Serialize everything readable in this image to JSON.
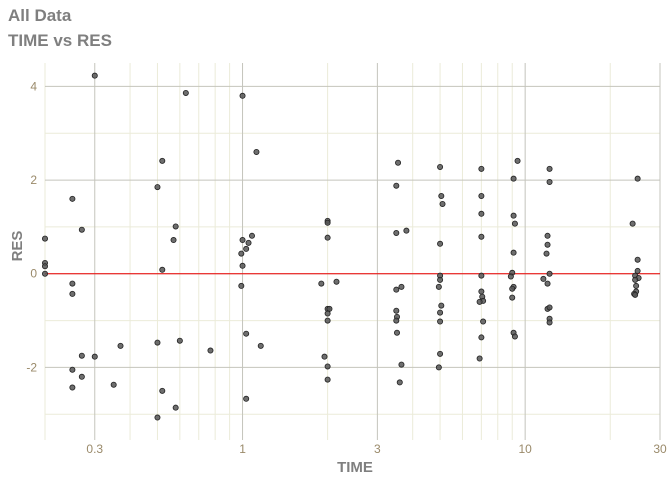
{
  "title": "All Data",
  "subtitle": "TIME vs RES",
  "chart_data": {
    "type": "scatter",
    "title": "All Data",
    "subtitle": "TIME vs RES",
    "xlabel": "TIME",
    "ylabel": "RES",
    "xscale": "log",
    "xlim": [
      0.2,
      30
    ],
    "ylim": [
      -3.55,
      4.5
    ],
    "xticks": [
      0.3,
      1,
      3,
      10,
      30
    ],
    "xtick_labels": [
      "0.3",
      "1",
      "3",
      "10",
      "30"
    ],
    "yticks": [
      -2,
      0,
      2,
      4
    ],
    "ytick_labels": [
      "-2",
      "0",
      "2",
      "4"
    ],
    "grid": true,
    "reference_line": {
      "y": 0,
      "color": "#ee0000"
    },
    "point_color": "#555555",
    "points": [
      [
        0.3,
        4.23
      ],
      [
        0.63,
        3.86
      ],
      [
        1.0,
        3.8
      ],
      [
        1.12,
        2.6
      ],
      [
        0.52,
        2.41
      ],
      [
        0.5,
        1.85
      ],
      [
        0.25,
        1.6
      ],
      [
        0.27,
        0.94
      ],
      [
        0.58,
        1.01
      ],
      [
        0.57,
        0.72
      ],
      [
        0.2,
        0.75
      ],
      [
        1.0,
        0.72
      ],
      [
        1.08,
        0.81
      ],
      [
        1.05,
        0.66
      ],
      [
        1.03,
        0.53
      ],
      [
        0.99,
        0.43
      ],
      [
        0.2,
        0.23
      ],
      [
        0.2,
        0.16
      ],
      [
        0.2,
        0.0
      ],
      [
        0.52,
        0.085
      ],
      [
        1.0,
        0.17
      ],
      [
        0.99,
        -0.26
      ],
      [
        0.25,
        -0.21
      ],
      [
        0.25,
        -0.43
      ],
      [
        1.03,
        -1.28
      ],
      [
        0.5,
        -1.47
      ],
      [
        0.6,
        -1.43
      ],
      [
        0.37,
        -1.54
      ],
      [
        0.77,
        -1.64
      ],
      [
        1.16,
        -1.54
      ],
      [
        0.27,
        -1.75
      ],
      [
        0.3,
        -1.77
      ],
      [
        0.25,
        -2.05
      ],
      [
        0.27,
        -2.2
      ],
      [
        0.35,
        -2.37
      ],
      [
        0.25,
        -2.43
      ],
      [
        0.52,
        -2.5
      ],
      [
        1.03,
        -2.67
      ],
      [
        0.58,
        -2.86
      ],
      [
        0.5,
        -3.07
      ],
      [
        2.0,
        1.13
      ],
      [
        2.0,
        1.09
      ],
      [
        2.0,
        0.77
      ],
      [
        3.55,
        2.37
      ],
      [
        3.5,
        1.88
      ],
      [
        3.5,
        0.87
      ],
      [
        3.8,
        0.92
      ],
      [
        5.0,
        2.28
      ],
      [
        5.05,
        1.66
      ],
      [
        5.1,
        1.49
      ],
      [
        5.0,
        0.64
      ],
      [
        1.9,
        -0.21
      ],
      [
        2.15,
        -0.17
      ],
      [
        2.0,
        -0.75
      ],
      [
        2.03,
        -0.75
      ],
      [
        2.0,
        -0.85
      ],
      [
        2.0,
        -1.0
      ],
      [
        1.95,
        -1.77
      ],
      [
        2.0,
        -1.98
      ],
      [
        2.0,
        -2.26
      ],
      [
        3.5,
        -0.34
      ],
      [
        3.65,
        -0.28
      ],
      [
        3.5,
        -0.79
      ],
      [
        3.52,
        -0.92
      ],
      [
        3.5,
        -1.0
      ],
      [
        3.52,
        -1.26
      ],
      [
        3.65,
        -1.94
      ],
      [
        3.6,
        -2.32
      ],
      [
        5.0,
        -0.04
      ],
      [
        5.0,
        -0.13
      ],
      [
        4.95,
        -0.28
      ],
      [
        5.05,
        -0.68
      ],
      [
        5.0,
        -0.83
      ],
      [
        5.0,
        -1.02
      ],
      [
        5.0,
        -1.71
      ],
      [
        4.95,
        -2.0
      ],
      [
        7.0,
        2.24
      ],
      [
        9.4,
        2.41
      ],
      [
        9.1,
        2.03
      ],
      [
        7.0,
        1.66
      ],
      [
        7.0,
        1.28
      ],
      [
        9.1,
        1.24
      ],
      [
        9.2,
        1.07
      ],
      [
        7.0,
        0.79
      ],
      [
        9.1,
        0.45
      ],
      [
        9.0,
        0.02
      ],
      [
        12.2,
        2.24
      ],
      [
        12.2,
        1.96
      ],
      [
        12.0,
        0.81
      ],
      [
        12.0,
        0.62
      ],
      [
        11.9,
        0.43
      ],
      [
        25.0,
        2.03
      ],
      [
        24.0,
        1.07
      ],
      [
        25.0,
        0.3
      ],
      [
        25.0,
        0.06
      ],
      [
        7.0,
        -0.04
      ],
      [
        7.0,
        -0.38
      ],
      [
        7.05,
        -0.49
      ],
      [
        7.1,
        -0.58
      ],
      [
        6.9,
        -0.6
      ],
      [
        7.1,
        -1.02
      ],
      [
        7.0,
        -1.36
      ],
      [
        6.9,
        -1.81
      ],
      [
        8.9,
        -0.06
      ],
      [
        9.1,
        -0.28
      ],
      [
        9.0,
        -0.32
      ],
      [
        9.0,
        -0.51
      ],
      [
        9.1,
        -1.26
      ],
      [
        9.2,
        -1.34
      ],
      [
        12.2,
        0.0
      ],
      [
        11.6,
        -0.11
      ],
      [
        12.0,
        -0.21
      ],
      [
        12.0,
        -0.75
      ],
      [
        12.2,
        -0.72
      ],
      [
        12.2,
        -0.96
      ],
      [
        12.2,
        -1.04
      ],
      [
        24.5,
        -0.04
      ],
      [
        25.2,
        -0.09
      ],
      [
        24.5,
        -0.13
      ],
      [
        24.7,
        -0.26
      ],
      [
        24.7,
        -0.38
      ],
      [
        24.3,
        -0.43
      ],
      [
        24.5,
        -0.45
      ]
    ]
  }
}
